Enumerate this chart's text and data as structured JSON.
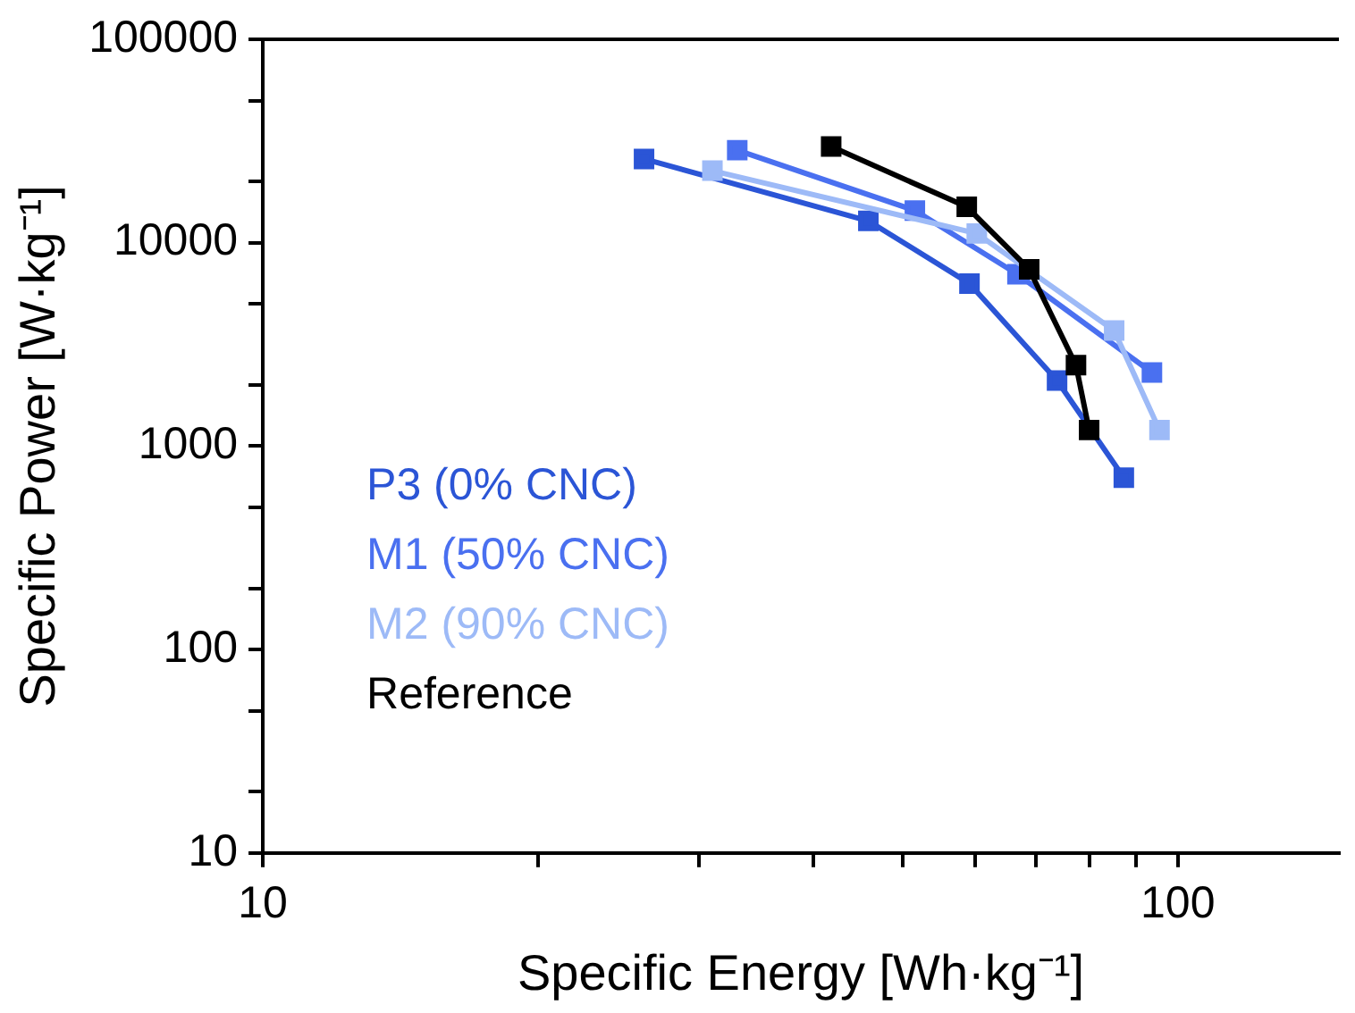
{
  "chart_data": {
    "type": "line",
    "xlabel": "Specific Energy [Wh·kg⁻¹]",
    "ylabel": "Specific Power [W·kg⁻¹]",
    "log": "xy",
    "grid": false,
    "legend": "left",
    "marker": "square",
    "line_style": "solid",
    "xlim": [
      10,
      150
    ],
    "xticks": [
      10,
      {
        "value": 20,
        "label": null
      },
      {
        "value": 30,
        "label": null
      },
      {
        "value": 40,
        "label": null
      },
      {
        "value": 50,
        "label": null
      },
      {
        "value": 60,
        "label": null
      },
      {
        "value": 70,
        "label": null
      },
      {
        "value": 80,
        "label": null
      },
      {
        "value": 90,
        "label": null
      },
      100
    ],
    "ylim": [
      10,
      100000
    ],
    "yticks": [
      10,
      {
        "value": 20,
        "label": null
      },
      {
        "value": 50,
        "label": null
      },
      100,
      {
        "value": 200,
        "label": null
      },
      {
        "value": 500,
        "label": null
      },
      1000,
      {
        "value": 2000,
        "label": null
      },
      {
        "value": 5000,
        "label": null
      },
      10000,
      {
        "value": 20000,
        "label": null
      },
      {
        "value": 50000,
        "label": null
      },
      100000
    ],
    "series": [
      {
        "name": "P3 (0% CNC)",
        "color": "#2b55d6",
        "x": [
          26.1,
          45.9,
          59.2,
          73.8,
          87.3
        ],
        "values": [
          25800,
          12800,
          6300,
          2100,
          700
        ]
      },
      {
        "name": "M1 (50% CNC)",
        "color": "#4a70f0",
        "x": [
          33.0,
          51.6,
          66.8,
          93.7
        ],
        "values": [
          28500,
          14400,
          7000,
          2300
        ]
      },
      {
        "name": "M2 (90% CNC)",
        "color": "#9dbaf7",
        "x": [
          31.0,
          60.3,
          85.2,
          95.5
        ],
        "values": [
          22600,
          11100,
          3700,
          1200
        ]
      },
      {
        "name": "Reference",
        "color": "#000000",
        "x": [
          41.8,
          58.8,
          68.8,
          77.4,
          80.0
        ],
        "values": [
          29700,
          15000,
          7400,
          2500,
          1200
        ]
      }
    ]
  }
}
